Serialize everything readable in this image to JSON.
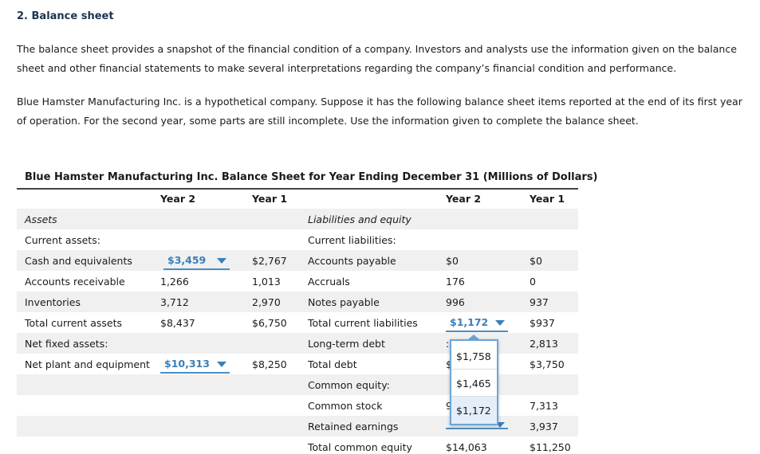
{
  "heading": "2. Balance sheet",
  "paragraph1": "The balance sheet provides a snapshot of the financial condition of a company. Investors and analysts use the information given on the balance sheet and other financial statements to make several interpretations regarding the company’s financial condition and performance.",
  "paragraph2": "Blue Hamster Manufacturing Inc. is a hypothetical company. Suppose it has the following balance sheet items reported at the end of its first year of operation. For the second year, some parts are still incomplete. Use the information given to complete the balance sheet.",
  "table": {
    "title": "Blue Hamster Manufacturing Inc. Balance Sheet for Year Ending December 31 (Millions of Dollars)",
    "headers": {
      "year2": "Year 2",
      "year1": "Year 1"
    },
    "left": {
      "assets": "Assets",
      "current_assets": "Current assets:",
      "cash": {
        "label": "Cash and equivalents",
        "y2": "$3,459",
        "y1": "$2,767"
      },
      "ar": {
        "label": "Accounts receivable",
        "y2": "1,266",
        "y1": "1,013"
      },
      "inv": {
        "label": "Inventories",
        "y2": "3,712",
        "y1": "2,970"
      },
      "tca": {
        "label": "Total current assets",
        "y2": "$8,437",
        "y1": "$6,750"
      },
      "nfa": "Net fixed assets:",
      "npe": {
        "label": "Net plant and equipment",
        "y2": "$10,313",
        "y1": "$8,250"
      }
    },
    "right": {
      "le": "Liabilities and equity",
      "cl": "Current liabilities:",
      "ap": {
        "label": "Accounts payable",
        "y2": "$0",
        "y1": "$0"
      },
      "acc": {
        "label": "Accruals",
        "y2": "176",
        "y1": "0"
      },
      "np": {
        "label": "Notes payable",
        "y2": "996",
        "y1": "937"
      },
      "tcl": {
        "label": "Total current liabilities",
        "y2": "$1,172",
        "y1": "$937"
      },
      "ltd": {
        "label": "Long-term debt",
        "y1": "2,813"
      },
      "td": {
        "label": "Total debt",
        "y1": "$3,750"
      },
      "ce": "Common equity:",
      "cs": {
        "label": "Common stock",
        "y1": "7,313"
      },
      "re": {
        "label": "Retained earnings",
        "y1": "3,937"
      },
      "tce": {
        "label": "Total common equity",
        "y2": "$14,063",
        "y1": "$11,250"
      }
    },
    "popup_options": [
      "$1,758",
      "$1,465",
      "$1,172"
    ],
    "popup_selected": "$1,172"
  }
}
